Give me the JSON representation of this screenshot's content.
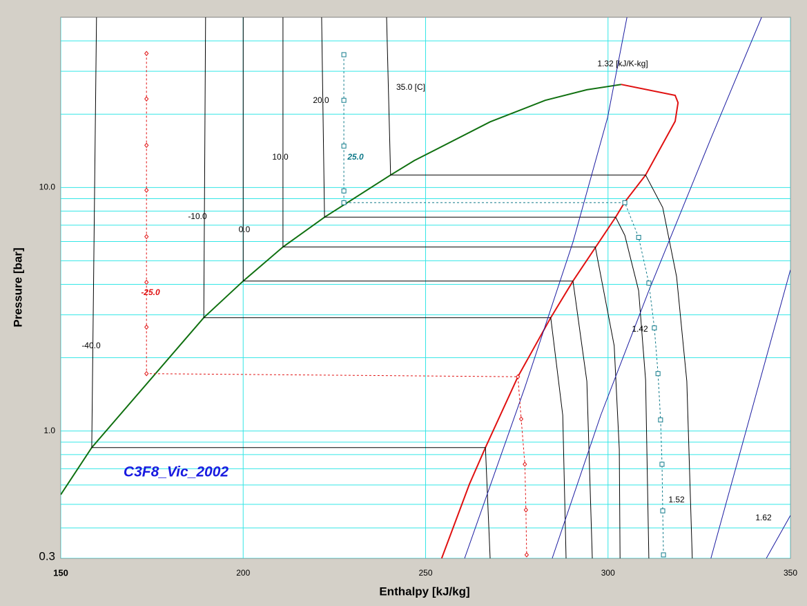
{
  "chart_data": {
    "type": "line",
    "xlabel": "Enthalpy [kJ/kg]",
    "ylabel": "Pressure [bar]",
    "annotation": "C3F8_Vic_2002",
    "xlim": [
      150,
      350
    ],
    "ylim": [
      0.3,
      50
    ],
    "log_y": true,
    "grid": true,
    "grid_color": "#33e6e6",
    "xticks": [
      150,
      200,
      250,
      300,
      350
    ],
    "yticks": [
      0.3,
      {
        "value": 1,
        "label": "1.0"
      },
      {
        "value": 10,
        "label": "10.0"
      }
    ],
    "yminor": [
      0.4,
      0.5,
      0.6,
      0.7,
      0.8,
      0.9,
      2,
      3,
      4,
      5,
      6,
      7,
      8,
      9,
      20,
      30,
      40
    ],
    "series": [
      {
        "color": "#107010",
        "width": 2,
        "x": [
          150,
          158.5,
          189.2,
          200,
          210.9,
          222.3,
          240.4,
          246.9,
          267.7,
          282.8,
          294.2,
          303.6
        ],
        "values": [
          0.548,
          0.855,
          2.92,
          4.13,
          5.7,
          7.55,
          11.25,
          12.9,
          18.6,
          22.8,
          25.2,
          26.5
        ]
      },
      {
        "color": "#e01010",
        "width": 2,
        "x": [
          303.6,
          318.4,
          319.2,
          318.4,
          310.3,
          304.6,
          302.1,
          296.5,
          290.4,
          284.3,
          275.3,
          266.4,
          262,
          254.4
        ],
        "values": [
          26.5,
          23.9,
          22.3,
          18.7,
          11.25,
          8.72,
          7.55,
          5.66,
          4.13,
          2.92,
          1.67,
          0.855,
          0.604,
          0.3
        ]
      },
      {
        "name": "-40.0",
        "color": "#000000",
        "width": 1,
        "x": [
          159.8,
          158.5,
          266.4,
          267.7
        ],
        "values": [
          50,
          0.855,
          0.855,
          0.3
        ]
      },
      {
        "name": "-10.0",
        "color": "#000000",
        "width": 1,
        "x": [
          189.7,
          189.2,
          284.3,
          287.6,
          288.5
        ],
        "values": [
          50,
          2.92,
          2.92,
          1.16,
          0.3
        ]
      },
      {
        "name": "0.0",
        "color": "#000000",
        "width": 1,
        "x": [
          200,
          200,
          290.4,
          294.2,
          295.7
        ],
        "values": [
          50,
          4.13,
          4.13,
          1.6,
          0.3
        ]
      },
      {
        "name": "10.0",
        "color": "#000000",
        "width": 1,
        "x": [
          210.9,
          210.9,
          296.5,
          301.7,
          303.1,
          303.3
        ],
        "values": [
          50,
          5.7,
          5.7,
          2.24,
          0.84,
          0.3
        ]
      },
      {
        "name": "20.0",
        "color": "#000000",
        "width": 1,
        "x": [
          221.5,
          222.3,
          302.1,
          304.6,
          308.4,
          310.3,
          311.2
        ],
        "values": [
          50,
          7.55,
          7.55,
          6.36,
          3.77,
          1.62,
          0.3
        ]
      },
      {
        "name": "35.0 [C]",
        "color": "#000000",
        "width": 1,
        "x": [
          239.3,
          240.4,
          310.3,
          315,
          318.8,
          321.6,
          323.1
        ],
        "values": [
          50,
          11.25,
          11.25,
          8.27,
          4.3,
          1.6,
          0.3
        ]
      },
      {
        "name": "1.32 [kJ/K-kg]",
        "color": "#1a1aa0",
        "width": 1,
        "x": [
          260.7,
          277.2,
          290.4,
          299.9,
          305.2
        ],
        "values": [
          0.3,
          1.51,
          5.97,
          19.4,
          50
        ]
      },
      {
        "name": "1.42",
        "color": "#1a1aa0",
        "width": 1,
        "x": [
          284.7,
          298,
          311.2,
          328.2,
          342.1
        ],
        "values": [
          0.3,
          1.16,
          3.77,
          15.9,
          50
        ]
      },
      {
        "name": "1.52",
        "color": "#1a1aa0",
        "width": 1,
        "x": [
          328.2,
          350
        ],
        "values": [
          0.3,
          4.59
        ]
      },
      {
        "name": "1.62",
        "color": "#1a1aa0",
        "width": 1,
        "x": [
          343.4,
          350
        ],
        "values": [
          0.3,
          0.45
        ]
      },
      {
        "name": "-25.0",
        "color": "#e01010",
        "width": 1,
        "dash": true,
        "marker": "diamond",
        "x": [
          173.5,
          173.5,
          173.5,
          173.5,
          173.5,
          173.5,
          173.5,
          173.5,
          275.3,
          276.2,
          277.2,
          277.5,
          277.7
        ],
        "values": [
          35.5,
          23.1,
          14.9,
          9.74,
          6.28,
          4.08,
          2.67,
          1.72,
          1.67,
          1.12,
          0.73,
          0.474,
          0.31
        ]
      },
      {
        "name": "25.0",
        "color": "#107a8a",
        "width": 1,
        "dash": true,
        "marker": "square",
        "x": [
          227.6,
          227.6,
          227.6,
          227.6,
          227.6,
          304.6,
          308.4,
          311.2,
          312.7,
          313.7,
          314.4,
          314.8,
          315,
          315.2
        ],
        "values": [
          35.1,
          22.8,
          14.8,
          9.68,
          8.66,
          8.66,
          6.24,
          4.05,
          2.65,
          1.72,
          1.11,
          0.73,
          0.47,
          0.31
        ]
      }
    ]
  }
}
